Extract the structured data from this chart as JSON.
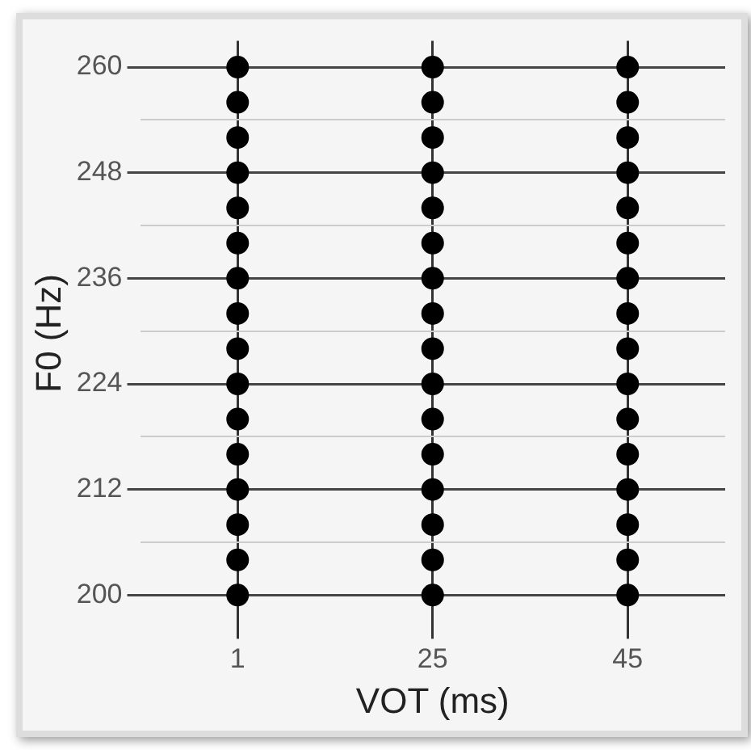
{
  "chart_data": {
    "type": "scatter",
    "xlabel": "VOT (ms)",
    "ylabel": "F0 (Hz)",
    "categories": [
      "1",
      "25",
      "45"
    ],
    "series": [
      {
        "color": "#000000",
        "x": [
          "1",
          "1",
          "1",
          "1",
          "1",
          "1",
          "1",
          "1",
          "1",
          "1",
          "1",
          "1",
          "1",
          "1",
          "1",
          "1",
          "25",
          "25",
          "25",
          "25",
          "25",
          "25",
          "25",
          "25",
          "25",
          "25",
          "25",
          "25",
          "25",
          "25",
          "25",
          "25",
          "45",
          "45",
          "45",
          "45",
          "45",
          "45",
          "45",
          "45",
          "45",
          "45",
          "45",
          "45",
          "45",
          "45",
          "45",
          "45"
        ],
        "values": [
          200,
          204,
          208,
          212,
          216,
          220,
          224,
          228,
          232,
          236,
          240,
          244,
          248,
          252,
          256,
          260,
          200,
          204,
          208,
          212,
          216,
          220,
          224,
          228,
          232,
          236,
          240,
          244,
          248,
          252,
          256,
          260,
          200,
          204,
          208,
          212,
          216,
          220,
          224,
          228,
          232,
          236,
          240,
          244,
          248,
          252,
          256,
          260
        ]
      }
    ],
    "ylim": [
      196.5,
      263
    ],
    "yticks": [
      200,
      {
        "value": 206,
        "label": null
      },
      212,
      {
        "value": 218,
        "label": null
      },
      224,
      {
        "value": 230,
        "label": null
      },
      236,
      {
        "value": 242,
        "label": null
      },
      248,
      {
        "value": 254,
        "label": null
      },
      260
    ],
    "grid": true,
    "marker": "circle",
    "legend": false
  }
}
